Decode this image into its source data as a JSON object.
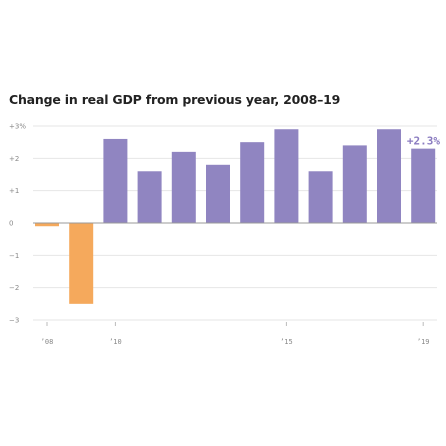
{
  "chart_data": {
    "type": "bar",
    "title": "Change in real GDP from previous year, 2008–19",
    "xlabel": "",
    "ylabel": "",
    "x": [
      2008,
      2009,
      2010,
      2011,
      2012,
      2013,
      2014,
      2015,
      2016,
      2017,
      2018,
      2019
    ],
    "values": [
      -0.1,
      -2.5,
      2.6,
      1.6,
      2.2,
      1.8,
      2.5,
      2.9,
      1.6,
      2.4,
      2.9,
      2.3
    ],
    "ylim": [
      -3,
      3
    ],
    "yticks": [
      3,
      2,
      1,
      0,
      -1,
      -2,
      -3
    ],
    "ytick_labels": [
      "+3%",
      "+2",
      "+1",
      "0",
      "−1",
      "−2",
      "−3"
    ],
    "xtick_positions": [
      2008,
      2010,
      2015,
      2019
    ],
    "xtick_labels": [
      "’08",
      "’10",
      "’15",
      "’19"
    ],
    "annotation": {
      "x": 2019,
      "text": "+2.3%"
    },
    "colors": {
      "positive": "#9085c1",
      "negative": "#f5a95c",
      "grid": "#e6e6e6",
      "axis": "#999999"
    },
    "grid": true
  }
}
